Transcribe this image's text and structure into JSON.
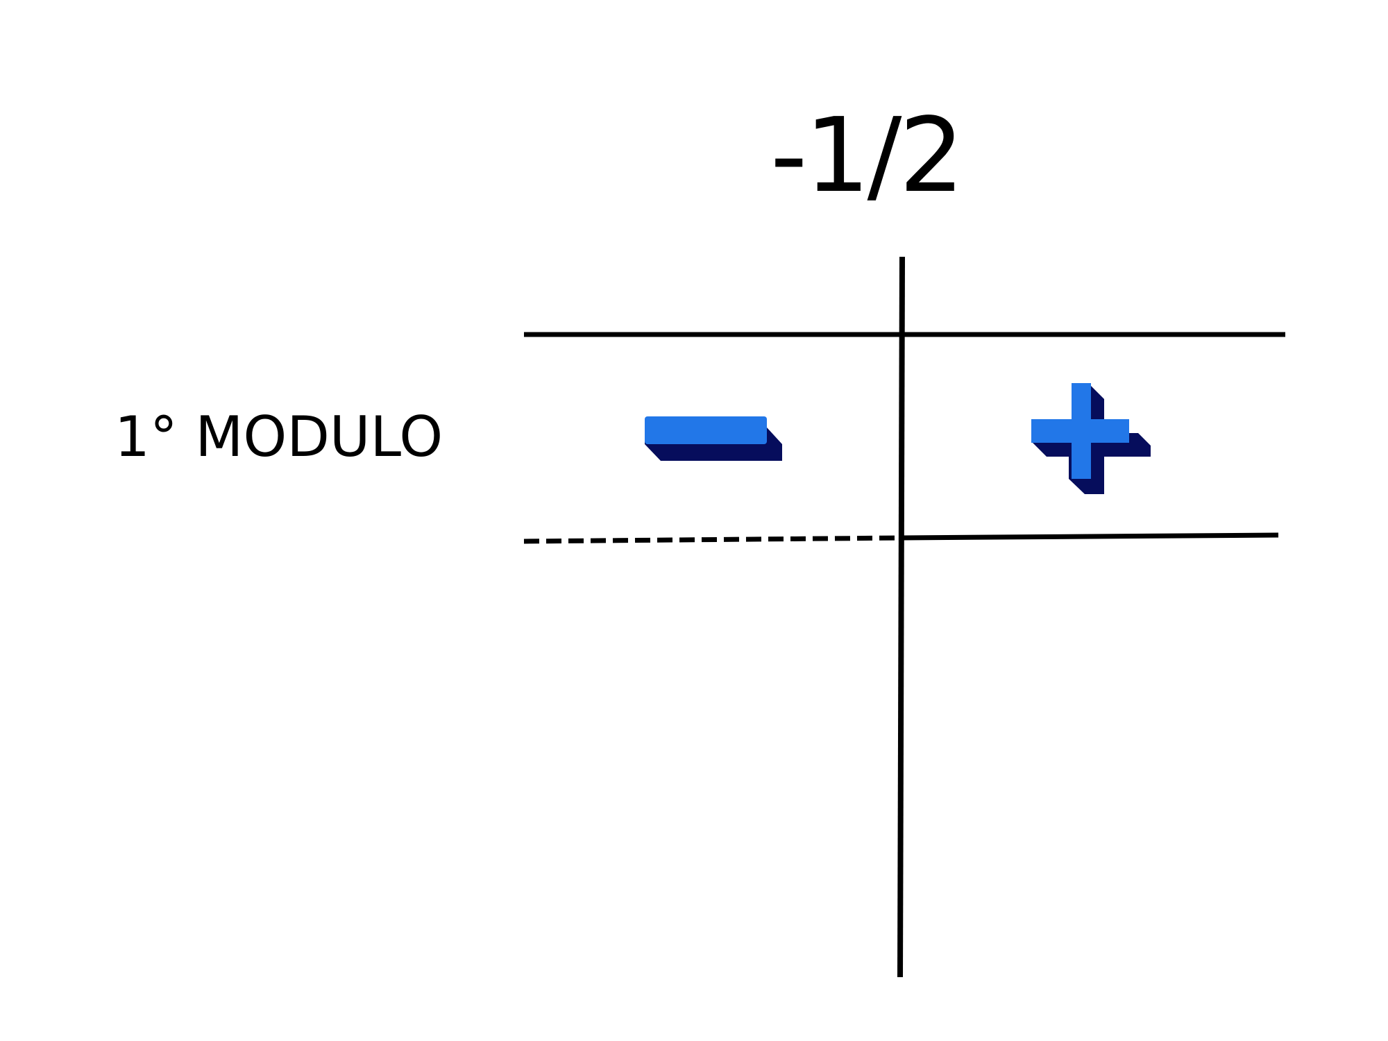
{
  "critical_point": "-1/2",
  "rows": [
    {
      "label": "1° MODULO",
      "left_sign": "minus-icon",
      "right_sign": "plus-icon"
    }
  ],
  "colors": {
    "line": "#000000",
    "sign_face": "#2277e8",
    "sign_shadow": "#060d5c"
  }
}
